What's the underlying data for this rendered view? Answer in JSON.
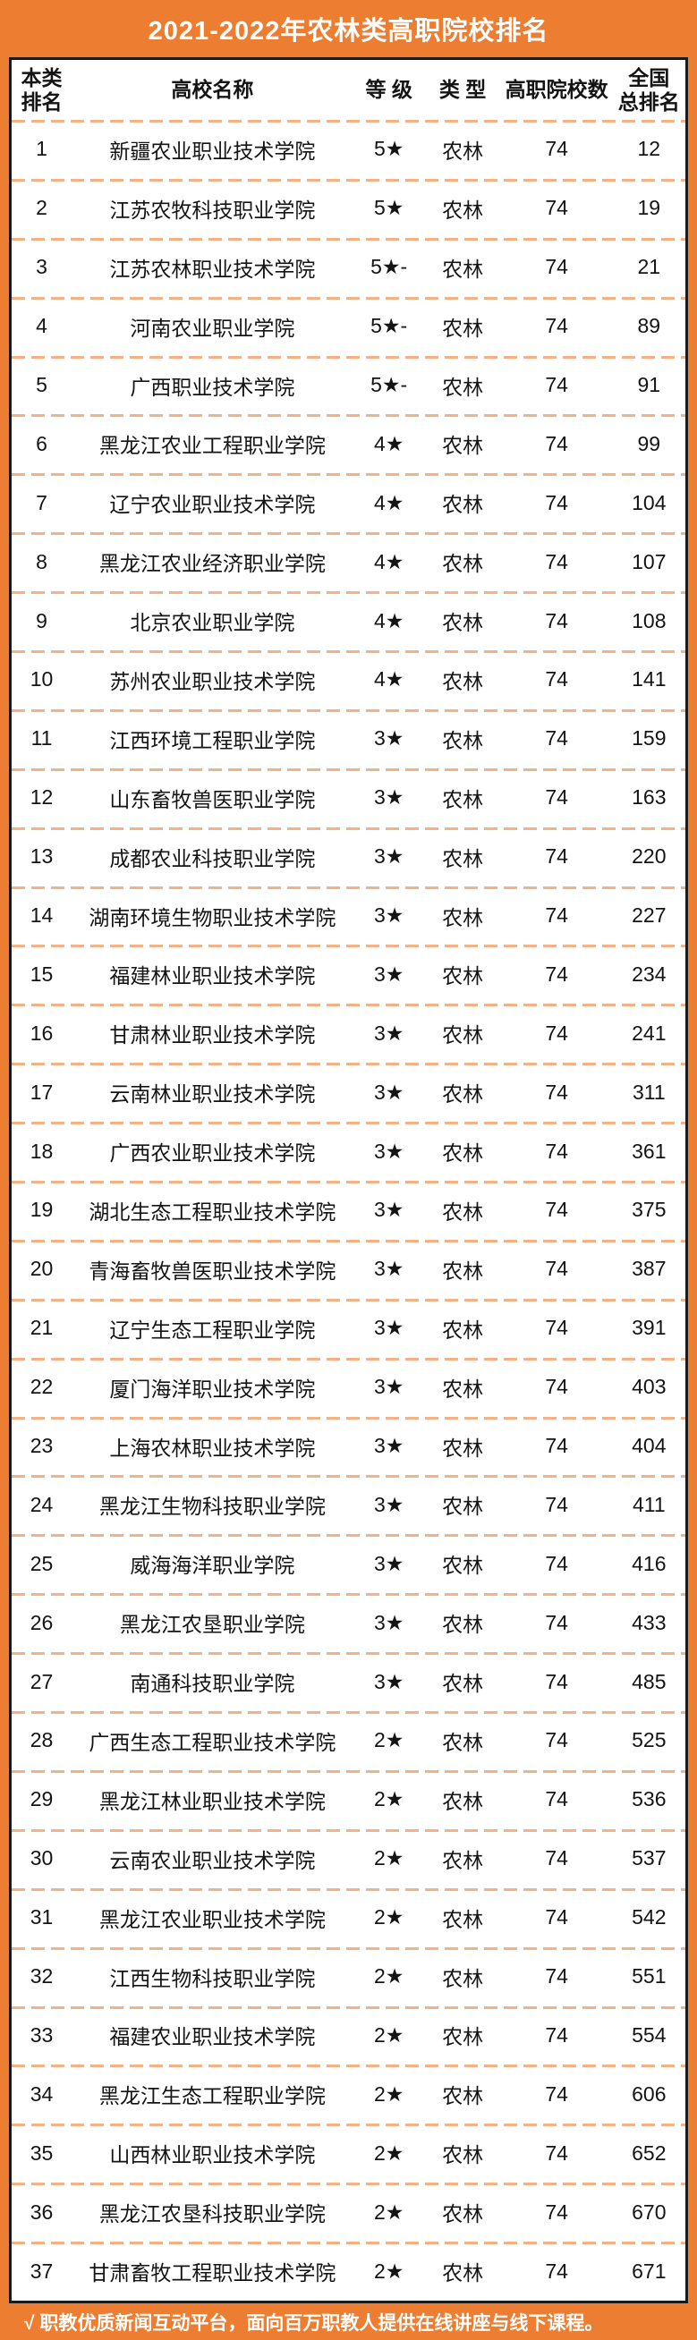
{
  "title": "2021-2022年农林类高职院校排名",
  "footer": "√ 职教优质新闻互动平台，面向百万职教人提供在线讲座与线下课程。",
  "colors": {
    "background": "#ED7D31",
    "divider": "#F4B183",
    "table_border": "#1A1A1A",
    "text": "#141414",
    "title_text": "#FFFFFF"
  },
  "table": {
    "headers": [
      "本类\n排名",
      "高校名称",
      "等 级",
      "类 型",
      "高职院校数",
      "全国\n总排名"
    ],
    "rows": [
      {
        "rank": "1",
        "name": "新疆农业职业技术学院",
        "grade": "5★",
        "type": "农林",
        "count": "74",
        "national": "12"
      },
      {
        "rank": "2",
        "name": "江苏农牧科技职业学院",
        "grade": "5★",
        "type": "农林",
        "count": "74",
        "national": "19"
      },
      {
        "rank": "3",
        "name": "江苏农林职业技术学院",
        "grade": "5★-",
        "type": "农林",
        "count": "74",
        "national": "21"
      },
      {
        "rank": "4",
        "name": "河南农业职业学院",
        "grade": "5★-",
        "type": "农林",
        "count": "74",
        "national": "89"
      },
      {
        "rank": "5",
        "name": "广西职业技术学院",
        "grade": "5★-",
        "type": "农林",
        "count": "74",
        "national": "91"
      },
      {
        "rank": "6",
        "name": "黑龙江农业工程职业学院",
        "grade": "4★",
        "type": "农林",
        "count": "74",
        "national": "99"
      },
      {
        "rank": "7",
        "name": "辽宁农业职业技术学院",
        "grade": "4★",
        "type": "农林",
        "count": "74",
        "national": "104"
      },
      {
        "rank": "8",
        "name": "黑龙江农业经济职业学院",
        "grade": "4★",
        "type": "农林",
        "count": "74",
        "national": "107"
      },
      {
        "rank": "9",
        "name": "北京农业职业学院",
        "grade": "4★",
        "type": "农林",
        "count": "74",
        "national": "108"
      },
      {
        "rank": "10",
        "name": "苏州农业职业技术学院",
        "grade": "4★",
        "type": "农林",
        "count": "74",
        "national": "141"
      },
      {
        "rank": "11",
        "name": "江西环境工程职业学院",
        "grade": "3★",
        "type": "农林",
        "count": "74",
        "national": "159"
      },
      {
        "rank": "12",
        "name": "山东畜牧兽医职业学院",
        "grade": "3★",
        "type": "农林",
        "count": "74",
        "national": "163"
      },
      {
        "rank": "13",
        "name": "成都农业科技职业学院",
        "grade": "3★",
        "type": "农林",
        "count": "74",
        "national": "220"
      },
      {
        "rank": "14",
        "name": "湖南环境生物职业技术学院",
        "grade": "3★",
        "type": "农林",
        "count": "74",
        "national": "227"
      },
      {
        "rank": "15",
        "name": "福建林业职业技术学院",
        "grade": "3★",
        "type": "农林",
        "count": "74",
        "national": "234"
      },
      {
        "rank": "16",
        "name": "甘肃林业职业技术学院",
        "grade": "3★",
        "type": "农林",
        "count": "74",
        "national": "241"
      },
      {
        "rank": "17",
        "name": "云南林业职业技术学院",
        "grade": "3★",
        "type": "农林",
        "count": "74",
        "national": "311"
      },
      {
        "rank": "18",
        "name": "广西农业职业技术学院",
        "grade": "3★",
        "type": "农林",
        "count": "74",
        "national": "361"
      },
      {
        "rank": "19",
        "name": "湖北生态工程职业技术学院",
        "grade": "3★",
        "type": "农林",
        "count": "74",
        "national": "375"
      },
      {
        "rank": "20",
        "name": "青海畜牧兽医职业技术学院",
        "grade": "3★",
        "type": "农林",
        "count": "74",
        "national": "387"
      },
      {
        "rank": "21",
        "name": "辽宁生态工程职业学院",
        "grade": "3★",
        "type": "农林",
        "count": "74",
        "national": "391"
      },
      {
        "rank": "22",
        "name": "厦门海洋职业技术学院",
        "grade": "3★",
        "type": "农林",
        "count": "74",
        "national": "403"
      },
      {
        "rank": "23",
        "name": "上海农林职业技术学院",
        "grade": "3★",
        "type": "农林",
        "count": "74",
        "national": "404"
      },
      {
        "rank": "24",
        "name": "黑龙江生物科技职业学院",
        "grade": "3★",
        "type": "农林",
        "count": "74",
        "national": "411"
      },
      {
        "rank": "25",
        "name": "威海海洋职业学院",
        "grade": "3★",
        "type": "农林",
        "count": "74",
        "national": "416"
      },
      {
        "rank": "26",
        "name": "黑龙江农垦职业学院",
        "grade": "3★",
        "type": "农林",
        "count": "74",
        "national": "433"
      },
      {
        "rank": "27",
        "name": "南通科技职业学院",
        "grade": "3★",
        "type": "农林",
        "count": "74",
        "national": "485"
      },
      {
        "rank": "28",
        "name": "广西生态工程职业技术学院",
        "grade": "2★",
        "type": "农林",
        "count": "74",
        "national": "525"
      },
      {
        "rank": "29",
        "name": "黑龙江林业职业技术学院",
        "grade": "2★",
        "type": "农林",
        "count": "74",
        "national": "536"
      },
      {
        "rank": "30",
        "name": "云南农业职业技术学院",
        "grade": "2★",
        "type": "农林",
        "count": "74",
        "national": "537"
      },
      {
        "rank": "31",
        "name": "黑龙江农业职业技术学院",
        "grade": "2★",
        "type": "农林",
        "count": "74",
        "national": "542"
      },
      {
        "rank": "32",
        "name": "江西生物科技职业学院",
        "grade": "2★",
        "type": "农林",
        "count": "74",
        "national": "551"
      },
      {
        "rank": "33",
        "name": "福建农业职业技术学院",
        "grade": "2★",
        "type": "农林",
        "count": "74",
        "national": "554"
      },
      {
        "rank": "34",
        "name": "黑龙江生态工程职业学院",
        "grade": "2★",
        "type": "农林",
        "count": "74",
        "national": "606"
      },
      {
        "rank": "35",
        "name": "山西林业职业技术学院",
        "grade": "2★",
        "type": "农林",
        "count": "74",
        "national": "652"
      },
      {
        "rank": "36",
        "name": "黑龙江农垦科技职业学院",
        "grade": "2★",
        "type": "农林",
        "count": "74",
        "national": "670"
      },
      {
        "rank": "37",
        "name": "甘肃畜牧工程职业技术学院",
        "grade": "2★",
        "type": "农林",
        "count": "74",
        "national": "671"
      }
    ]
  }
}
